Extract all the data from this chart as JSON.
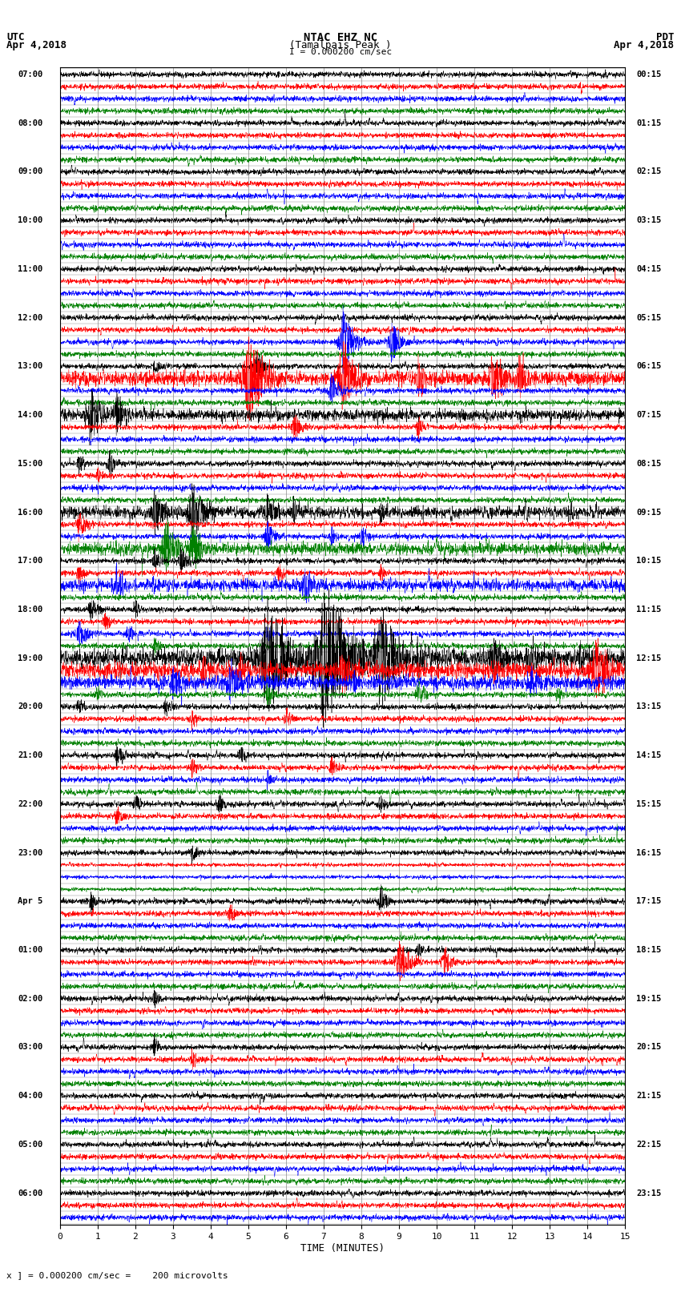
{
  "title_line1": "NTAC EHZ NC",
  "title_line2": "(Tamalpais Peak )",
  "title_scale": "I = 0.000200 cm/sec",
  "left_header_line1": "UTC",
  "left_header_line2": "Apr 4,2018",
  "right_header_line1": "PDT",
  "right_header_line2": "Apr 4,2018",
  "xlabel": "TIME (MINUTES)",
  "footnote": "x ] = 0.000200 cm/sec =    200 microvolts",
  "utc_labels": [
    "07:00",
    "",
    "",
    "",
    "08:00",
    "",
    "",
    "",
    "09:00",
    "",
    "",
    "",
    "10:00",
    "",
    "",
    "",
    "11:00",
    "",
    "",
    "",
    "12:00",
    "",
    "",
    "",
    "13:00",
    "",
    "",
    "",
    "14:00",
    "",
    "",
    "",
    "15:00",
    "",
    "",
    "",
    "16:00",
    "",
    "",
    "",
    "17:00",
    "",
    "",
    "",
    "18:00",
    "",
    "",
    "",
    "19:00",
    "",
    "",
    "",
    "20:00",
    "",
    "",
    "",
    "21:00",
    "",
    "",
    "",
    "22:00",
    "",
    "",
    "",
    "23:00",
    "",
    "",
    "",
    "Apr 5",
    "",
    "",
    "",
    "01:00",
    "",
    "",
    "",
    "02:00",
    "",
    "",
    "",
    "03:00",
    "",
    "",
    "",
    "04:00",
    "",
    "",
    "",
    "05:00",
    "",
    "",
    "",
    "06:00",
    "",
    ""
  ],
  "pdt_labels": [
    "00:15",
    "",
    "",
    "",
    "01:15",
    "",
    "",
    "",
    "02:15",
    "",
    "",
    "",
    "03:15",
    "",
    "",
    "",
    "04:15",
    "",
    "",
    "",
    "05:15",
    "",
    "",
    "",
    "06:15",
    "",
    "",
    "",
    "07:15",
    "",
    "",
    "",
    "08:15",
    "",
    "",
    "",
    "09:15",
    "",
    "",
    "",
    "10:15",
    "",
    "",
    "",
    "11:15",
    "",
    "",
    "",
    "12:15",
    "",
    "",
    "",
    "13:15",
    "",
    "",
    "",
    "14:15",
    "",
    "",
    "",
    "15:15",
    "",
    "",
    "",
    "16:15",
    "",
    "",
    "",
    "17:15",
    "",
    "",
    "",
    "18:15",
    "",
    "",
    "",
    "19:15",
    "",
    "",
    "",
    "20:15",
    "",
    "",
    "",
    "21:15",
    "",
    "",
    "",
    "22:15",
    "",
    "",
    "",
    "23:15",
    "",
    ""
  ],
  "n_rows": 95,
  "x_min": 0,
  "x_max": 15,
  "x_ticks": [
    0,
    1,
    2,
    3,
    4,
    5,
    6,
    7,
    8,
    9,
    10,
    11,
    12,
    13,
    14,
    15
  ],
  "trace_colors": [
    "black",
    "red",
    "blue",
    "green"
  ],
  "background_color": "white",
  "grid_color": "#888888",
  "seed": 42
}
